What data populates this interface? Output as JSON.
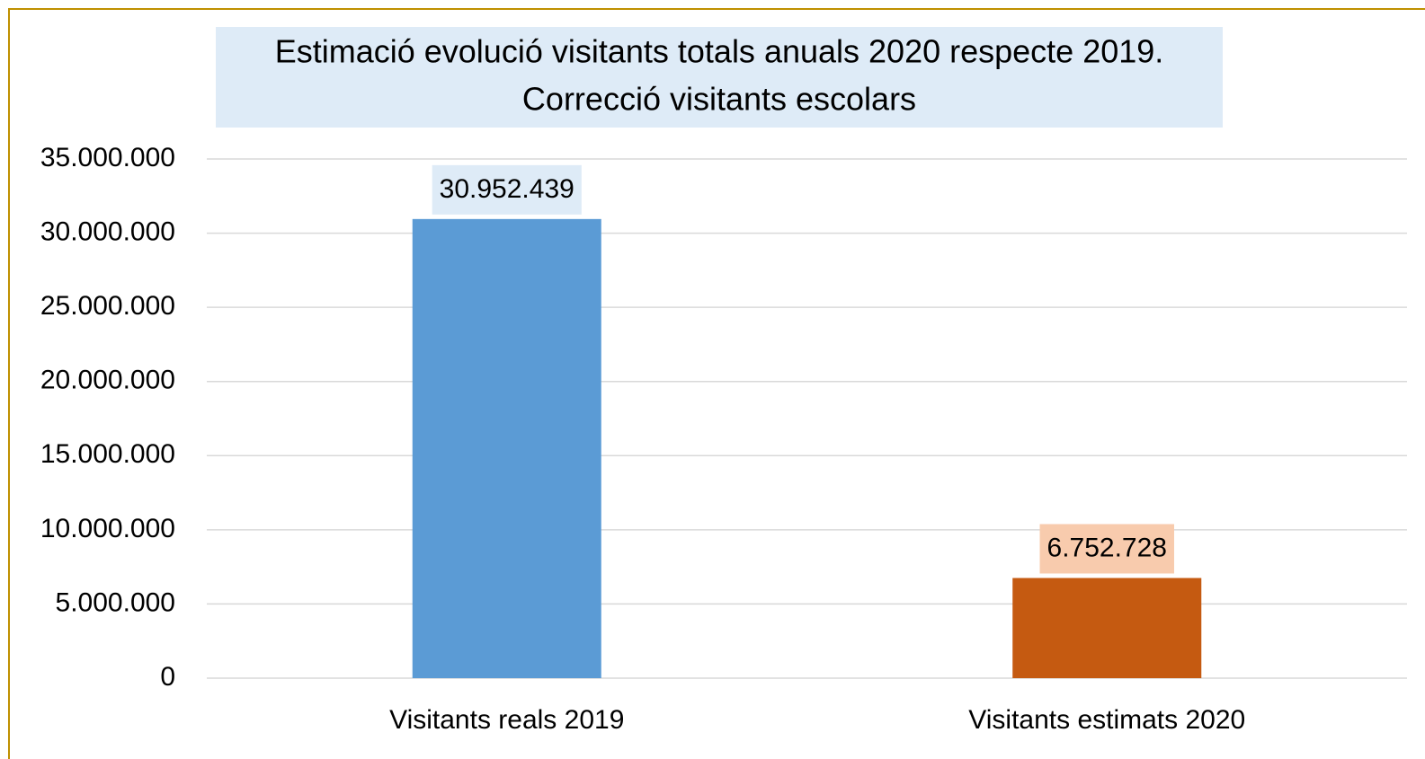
{
  "chart_data": {
    "type": "bar",
    "title": [
      "Estimació evolució visitants totals anuals 2020 respecte 2019.",
      "Correcció visitants escolars"
    ],
    "title_background": "#deebf7",
    "categories": [
      "Visitants reals 2019",
      "Visitants estimats 2020"
    ],
    "values": [
      30952439,
      6752728
    ],
    "value_labels": [
      "30.952.439",
      "6.752.728"
    ],
    "colors": [
      "#5b9bd5",
      "#c55a11"
    ],
    "label_colors": [
      "#deebf7",
      "#f8cbad"
    ],
    "ylim": [
      0,
      35000000
    ],
    "yticks": [
      0,
      {
        "value": 5000000,
        "label": "5.000.000"
      },
      {
        "value": 10000000,
        "label": "10.000.000"
      },
      {
        "value": 15000000,
        "label": "15.000.000"
      },
      {
        "value": 20000000,
        "label": "20.000.000"
      },
      {
        "value": 25000000,
        "label": "25.000.000"
      },
      {
        "value": 30000000,
        "label": "30.000.000"
      },
      {
        "value": 35000000,
        "label": "35.000.000"
      }
    ],
    "grid": true
  }
}
